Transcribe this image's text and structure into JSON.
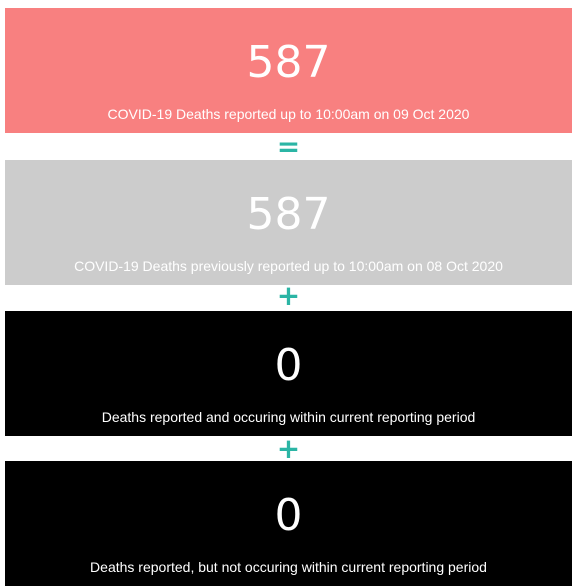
{
  "cards": [
    {
      "value": 587,
      "label": "COVID-19 Deaths reported up to 10:00am on 09 Oct 2020"
    },
    {
      "value": 587,
      "label": "COVID-19 Deaths previously reported up to 10:00am on 08 Oct 2020"
    },
    {
      "value": 0,
      "label": "Deaths reported and occuring within current reporting period"
    },
    {
      "value": 0,
      "label": "Deaths reported, but not occuring within current reporting period"
    }
  ],
  "operators": [
    "=",
    "+",
    "+"
  ]
}
